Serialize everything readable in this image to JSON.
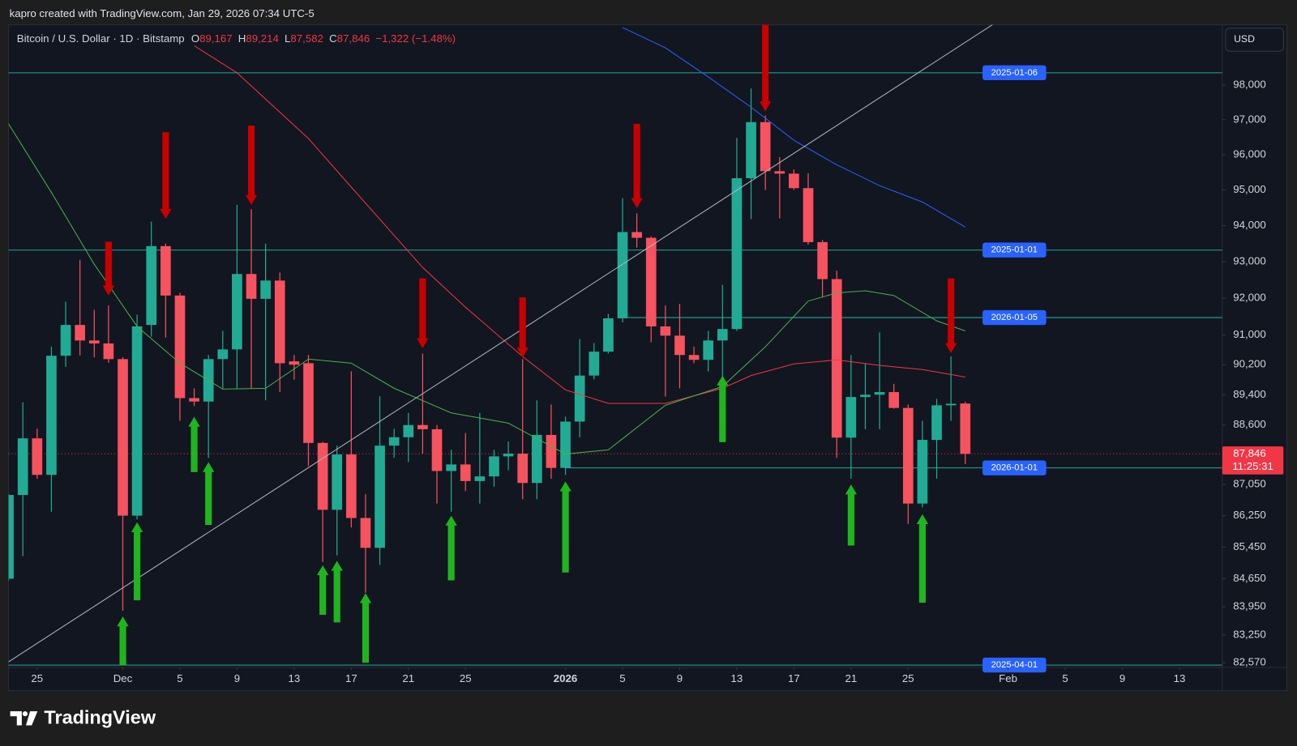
{
  "page": {
    "attribution": "kapro created with TradingView.com, Jan 29, 2026 07:34 UTC-5",
    "currency_button": "USD",
    "brand": "TradingView"
  },
  "chart_data": {
    "type": "candlestick",
    "legend": {
      "symbol": "Bitcoin / U.S. Dollar · 1D · Bitstamp",
      "fields": [
        {
          "key": "O",
          "value": "89,167"
        },
        {
          "key": "H",
          "value": "89,214"
        },
        {
          "key": "L",
          "value": "87,582"
        },
        {
          "key": "C",
          "value": "87,846"
        }
      ],
      "change": "−1,322 (−1.48%)"
    },
    "up_color": "#22ab94",
    "down_color": "#f7525f",
    "x": [
      "2025-11-23",
      "2025-11-24",
      "2025-11-25",
      "2025-11-26",
      "2025-11-27",
      "2025-11-28",
      "2025-11-29",
      "2025-11-30",
      "2025-12-01",
      "2025-12-02",
      "2025-12-03",
      "2025-12-04",
      "2025-12-05",
      "2025-12-06",
      "2025-12-07",
      "2025-12-08",
      "2025-12-09",
      "2025-12-10",
      "2025-12-11",
      "2025-12-12",
      "2025-12-13",
      "2025-12-14",
      "2025-12-15",
      "2025-12-16",
      "2025-12-17",
      "2025-12-18",
      "2025-12-19",
      "2025-12-20",
      "2025-12-21",
      "2025-12-22",
      "2025-12-23",
      "2025-12-24",
      "2025-12-25",
      "2025-12-26",
      "2025-12-27",
      "2025-12-28",
      "2025-12-29",
      "2025-12-30",
      "2025-12-31",
      "2026-01-01",
      "2026-01-02",
      "2026-01-03",
      "2026-01-04",
      "2026-01-05",
      "2026-01-06",
      "2026-01-07",
      "2026-01-08",
      "2026-01-09",
      "2026-01-10",
      "2026-01-11",
      "2026-01-12",
      "2026-01-13",
      "2026-01-14",
      "2026-01-15",
      "2026-01-16",
      "2026-01-17",
      "2026-01-18",
      "2026-01-19",
      "2026-01-20",
      "2026-01-21",
      "2026-01-22",
      "2026-01-23",
      "2026-01-24",
      "2026-01-25",
      "2026-01-26",
      "2026-01-27",
      "2026-01-28",
      "2026-01-29"
    ],
    "open": [
      84650,
      86780,
      88250,
      87300,
      90440,
      91270,
      90850,
      90770,
      90350,
      86250,
      91270,
      93430,
      92070,
      89310,
      89220,
      90350,
      90610,
      92660,
      91980,
      92480,
      90290,
      90240,
      88130,
      86400,
      87830,
      86190,
      85430,
      88060,
      88280,
      88600,
      88490,
      87400,
      87570,
      87140,
      87260,
      87780,
      87850,
      87090,
      88340,
      87480,
      88690,
      89910,
      90550,
      91450,
      93820,
      93660,
      91230,
      90980,
      90460,
      90330,
      90850,
      91160,
      95330,
      96930,
      95530,
      95460,
      95050,
      93540,
      92520,
      88270,
      89340,
      89400,
      89470,
      89050,
      86560,
      88210,
      89120,
      89167
    ],
    "high": [
      86800,
      89200,
      88500,
      90680,
      91900,
      93050,
      91680,
      91800,
      90400,
      91550,
      94110,
      93500,
      92140,
      89570,
      90460,
      91110,
      94580,
      94460,
      93500,
      92700,
      90460,
      90460,
      88160,
      88060,
      90020,
      86800,
      89360,
      88500,
      88920,
      90500,
      88600,
      87950,
      88390,
      88920,
      87950,
      88170,
      90350,
      89250,
      89140,
      88820,
      90890,
      90780,
      91570,
      94770,
      94340,
      93700,
      91800,
      91840,
      90680,
      91110,
      92360,
      96480,
      97900,
      97120,
      95930,
      95580,
      95470,
      93600,
      92750,
      90460,
      90240,
      91070,
      89690,
      89140,
      88710,
      89290,
      90420,
      89214
    ],
    "low": [
      84600,
      85220,
      87200,
      86350,
      90140,
      90450,
      90400,
      90250,
      83850,
      86150,
      90950,
      90930,
      88710,
      89100,
      87740,
      89570,
      89570,
      89570,
      89250,
      89470,
      89800,
      87530,
      85070,
      85240,
      85950,
      84300,
      85000,
      87740,
      87630,
      87850,
      86560,
      86350,
      86880,
      86560,
      86990,
      87420,
      86670,
      86670,
      87200,
      87300,
      88280,
      89810,
      90500,
      91340,
      93390,
      90800,
      89350,
      89570,
      90240,
      90020,
      89570,
      91110,
      94180,
      95000,
      94200,
      95000,
      93470,
      92030,
      87740,
      87200,
      88490,
      88490,
      89030,
      86040,
      86460,
      87200,
      88710,
      87582
    ],
    "close": [
      86780,
      88250,
      87300,
      90440,
      91270,
      90850,
      90770,
      90350,
      86250,
      91230,
      93430,
      92070,
      89310,
      89220,
      90350,
      90610,
      92660,
      91980,
      92480,
      90240,
      90200,
      88130,
      86400,
      87830,
      86190,
      85430,
      88060,
      88280,
      88600,
      88490,
      87400,
      87570,
      87140,
      87260,
      87780,
      87850,
      87090,
      88340,
      87480,
      88690,
      89910,
      90550,
      91450,
      93820,
      93660,
      91230,
      90980,
      90460,
      90330,
      90850,
      91160,
      95330,
      96930,
      95530,
      95460,
      95050,
      93540,
      92520,
      88270,
      89340,
      89400,
      89470,
      89050,
      86560,
      88210,
      89120,
      89160,
      87846
    ],
    "xlim": [
      "2025-11-23",
      "2026-02-16"
    ],
    "xticks": [
      {
        "value": "2025-11-25",
        "label": "25"
      },
      {
        "value": "2025-12-01",
        "label": "Dec"
      },
      {
        "value": "2025-12-05",
        "label": "5"
      },
      {
        "value": "2025-12-09",
        "label": "9"
      },
      {
        "value": "2025-12-13",
        "label": "13"
      },
      {
        "value": "2025-12-17",
        "label": "17"
      },
      {
        "value": "2025-12-21",
        "label": "21"
      },
      {
        "value": "2025-12-25",
        "label": "25"
      },
      {
        "value": "2026-01-01",
        "label": "2026"
      },
      {
        "value": "2026-01-05",
        "label": "5"
      },
      {
        "value": "2026-01-09",
        "label": "9"
      },
      {
        "value": "2026-01-13",
        "label": "13"
      },
      {
        "value": "2026-01-17",
        "label": "17"
      },
      {
        "value": "2026-01-21",
        "label": "21"
      },
      {
        "value": "2026-01-25",
        "label": "25"
      },
      {
        "value": "2026-02-01",
        "label": "Feb"
      },
      {
        "value": "2026-02-05",
        "label": "5"
      },
      {
        "value": "2026-02-09",
        "label": "9"
      },
      {
        "value": "2026-02-13",
        "label": "13"
      }
    ],
    "log_scale": true,
    "ylim": [
      82450,
      99770
    ],
    "yticks": [
      {
        "value": 98000,
        "label": "98,000"
      },
      {
        "value": 97000,
        "label": "97,000"
      },
      {
        "value": 96000,
        "label": "96,000"
      },
      {
        "value": 95000,
        "label": "95,000"
      },
      {
        "value": 94000,
        "label": "94,000"
      },
      {
        "value": 93000,
        "label": "93,000"
      },
      {
        "value": 92000,
        "label": "92,000"
      },
      {
        "value": 91000,
        "label": "91,000"
      },
      {
        "value": 90200,
        "label": "90,200"
      },
      {
        "value": 89400,
        "label": "89,400"
      },
      {
        "value": 88600,
        "label": "88,600"
      },
      {
        "value": 87050,
        "label": "87,050"
      },
      {
        "value": 86250,
        "label": "86,250"
      },
      {
        "value": 85450,
        "label": "85,450"
      },
      {
        "value": 84650,
        "label": "84,650"
      },
      {
        "value": 83950,
        "label": "83,950"
      },
      {
        "value": 83250,
        "label": "83,250"
      },
      {
        "value": 82570,
        "label": "82,570"
      }
    ],
    "last_price": {
      "value": 87846,
      "label": "87,846",
      "countdown": "11:25:31",
      "color": "#f23645"
    },
    "level_color": "#26a69a",
    "level_label_color": "#2962ff",
    "levels": [
      {
        "label": "2025-01-06",
        "value": 98360
      },
      {
        "label": "2025-01-01",
        "value": 93320
      },
      {
        "label": "2026-01-05",
        "value": 91470,
        "start": "2026-01-05"
      },
      {
        "label": "2026-01-01",
        "value": 87480,
        "start": "2026-01-01"
      },
      {
        "label": "2025-04-01",
        "value": 82510
      }
    ],
    "lines": [
      {
        "color": "#f23645",
        "x": [
          "2025-12-06",
          "2025-12-09",
          "2025-12-14",
          "2025-12-17",
          "2025-12-22",
          "2025-12-25",
          "2025-12-29",
          "2026-01-01",
          "2026-01-04",
          "2026-01-08",
          "2026-01-12",
          "2026-01-14",
          "2026-01-17",
          "2026-01-20",
          "2026-01-23",
          "2026-01-26",
          "2026-01-29"
        ],
        "values": [
          99150,
          98360,
          96460,
          95080,
          92840,
          91750,
          90420,
          89530,
          89170,
          89170,
          89570,
          89910,
          90220,
          90330,
          90180,
          90070,
          89870
        ]
      },
      {
        "color": "#4caf50",
        "x": [
          "2025-11-23",
          "2025-11-26",
          "2025-11-29",
          "2025-12-02",
          "2025-12-05",
          "2025-12-08",
          "2025-12-11",
          "2025-12-14",
          "2025-12-17",
          "2025-12-20",
          "2025-12-24",
          "2025-12-28",
          "2026-01-01",
          "2026-01-04",
          "2026-01-08",
          "2026-01-12",
          "2026-01-15",
          "2026-01-18",
          "2026-01-20",
          "2026-01-22",
          "2026-01-24",
          "2026-01-27",
          "2026-01-29"
        ],
        "values": [
          96880,
          94930,
          92930,
          91230,
          90240,
          89550,
          89570,
          90350,
          90240,
          89570,
          88920,
          88650,
          87840,
          87950,
          89120,
          89620,
          90680,
          91920,
          92140,
          92200,
          92070,
          91380,
          91110
        ]
      },
      {
        "color": "#2962ff",
        "x": [
          "2026-01-05",
          "2026-01-08",
          "2026-01-11",
          "2026-01-14",
          "2026-01-17",
          "2026-01-20",
          "2026-01-23",
          "2026-01-26",
          "2026-01-29"
        ],
        "values": [
          99690,
          99090,
          98240,
          97360,
          96410,
          95710,
          95120,
          94660,
          93960
        ]
      },
      {
        "color": "#b2b5be",
        "x": [
          "2025-11-23",
          "2026-01-31"
        ],
        "values": [
          82590,
          99800
        ]
      }
    ],
    "arrow_groups": [
      {
        "color": "#c90000",
        "x": [
          "2025-11-30",
          "2025-12-04",
          "2025-12-10",
          "2025-12-22",
          "2025-12-29",
          "2026-01-06",
          "2026-01-15",
          "2026-01-28"
        ],
        "from": [
          93550,
          96640,
          96830,
          92540,
          92020,
          96880,
          99770,
          92540
        ],
        "to": [
          92070,
          94190,
          94580,
          90640,
          90390,
          94490,
          97240,
          90510
        ]
      },
      {
        "color": "#1fb51f",
        "x": [
          "2025-12-01",
          "2025-12-02",
          "2025-12-06",
          "2025-12-07",
          "2025-12-15",
          "2025-12-16",
          "2025-12-18",
          "2025-12-24",
          "2026-01-01",
          "2026-01-12",
          "2026-01-21",
          "2026-01-26"
        ],
        "from": [
          82510,
          84110,
          87370,
          86010,
          83750,
          83560,
          82570,
          84610,
          84810,
          88150,
          85490,
          84050
        ],
        "to": [
          83710,
          86080,
          88820,
          87630,
          84990,
          85100,
          84290,
          86250,
          87130,
          89910,
          87050,
          86290
        ]
      }
    ]
  }
}
